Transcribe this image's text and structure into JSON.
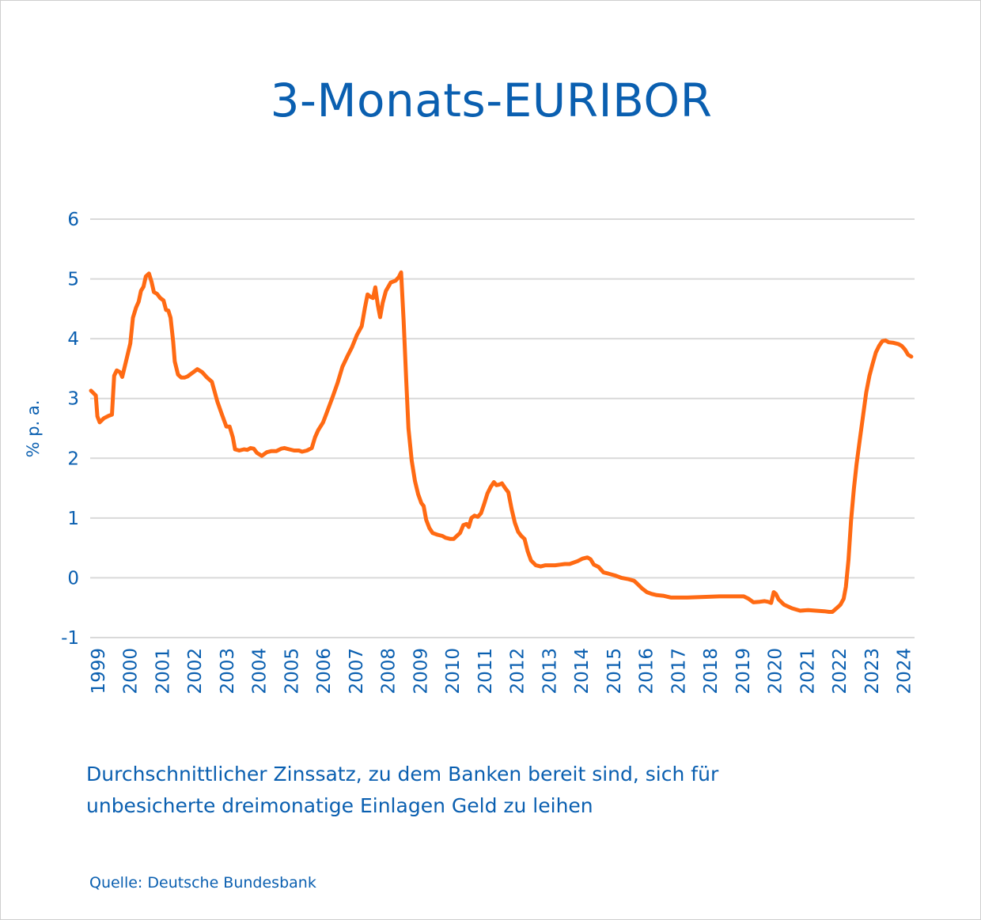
{
  "title": "3-Monats-EURIBOR",
  "subtitle_line1": "Durchschnittlicher Zinssatz, zu dem Banken bereit sind, sich für",
  "subtitle_line2": "unbesicherte dreimonatige Einlagen Geld zu leihen",
  "source": "Quelle: Deutsche Bundesbank",
  "colors": {
    "text": "#0a5fb0",
    "line": "#ff6a13",
    "grid": "#d9d9d9"
  },
  "chart_data": {
    "type": "line",
    "title": "3-Monats-EURIBOR",
    "xlabel": "",
    "ylabel": "% p. a.",
    "ylim": [
      -1,
      6
    ],
    "yticks": [
      "-1",
      "0",
      "1",
      "2",
      "3",
      "4",
      "5",
      "6"
    ],
    "xlim": [
      1999.0,
      2024.55
    ],
    "xticks": [
      "1999",
      "2000",
      "2001",
      "2002",
      "2003",
      "2004",
      "2005",
      "2006",
      "2007",
      "2008",
      "2009",
      "2010",
      "2011",
      "2012",
      "2013",
      "2014",
      "2015",
      "2016",
      "2017",
      "2018",
      "2019",
      "2020",
      "2021",
      "2022",
      "2023",
      "2024"
    ],
    "grid": true,
    "series": [
      {
        "points": [
          [
            1999.0,
            3.13
          ],
          [
            1999.15,
            3.05
          ],
          [
            1999.2,
            2.7
          ],
          [
            1999.27,
            2.6
          ],
          [
            1999.4,
            2.67
          ],
          [
            1999.55,
            2.71
          ],
          [
            1999.65,
            2.73
          ],
          [
            1999.72,
            3.38
          ],
          [
            1999.8,
            3.47
          ],
          [
            1999.9,
            3.44
          ],
          [
            1999.97,
            3.36
          ],
          [
            2000.1,
            3.65
          ],
          [
            2000.22,
            3.92
          ],
          [
            2000.3,
            4.35
          ],
          [
            2000.4,
            4.52
          ],
          [
            2000.48,
            4.62
          ],
          [
            2000.55,
            4.8
          ],
          [
            2000.63,
            4.87
          ],
          [
            2000.7,
            5.04
          ],
          [
            2000.8,
            5.09
          ],
          [
            2000.88,
            4.95
          ],
          [
            2000.95,
            4.78
          ],
          [
            2001.05,
            4.75
          ],
          [
            2001.15,
            4.68
          ],
          [
            2001.25,
            4.64
          ],
          [
            2001.33,
            4.48
          ],
          [
            2001.4,
            4.47
          ],
          [
            2001.47,
            4.35
          ],
          [
            2001.55,
            3.95
          ],
          [
            2001.6,
            3.62
          ],
          [
            2001.7,
            3.4
          ],
          [
            2001.8,
            3.35
          ],
          [
            2001.9,
            3.35
          ],
          [
            2002.0,
            3.37
          ],
          [
            2002.15,
            3.43
          ],
          [
            2002.3,
            3.49
          ],
          [
            2002.45,
            3.44
          ],
          [
            2002.6,
            3.35
          ],
          [
            2002.75,
            3.28
          ],
          [
            2002.92,
            2.95
          ],
          [
            2003.05,
            2.75
          ],
          [
            2003.2,
            2.53
          ],
          [
            2003.3,
            2.53
          ],
          [
            2003.4,
            2.35
          ],
          [
            2003.47,
            2.15
          ],
          [
            2003.6,
            2.13
          ],
          [
            2003.75,
            2.15
          ],
          [
            2003.85,
            2.14
          ],
          [
            2003.95,
            2.17
          ],
          [
            2004.05,
            2.16
          ],
          [
            2004.15,
            2.09
          ],
          [
            2004.3,
            2.04
          ],
          [
            2004.45,
            2.1
          ],
          [
            2004.6,
            2.12
          ],
          [
            2004.75,
            2.12
          ],
          [
            2004.9,
            2.16
          ],
          [
            2005.0,
            2.17
          ],
          [
            2005.15,
            2.15
          ],
          [
            2005.3,
            2.13
          ],
          [
            2005.45,
            2.13
          ],
          [
            2005.55,
            2.11
          ],
          [
            2005.7,
            2.13
          ],
          [
            2005.85,
            2.17
          ],
          [
            2005.95,
            2.35
          ],
          [
            2006.05,
            2.47
          ],
          [
            2006.2,
            2.6
          ],
          [
            2006.3,
            2.74
          ],
          [
            2006.5,
            3.03
          ],
          [
            2006.65,
            3.26
          ],
          [
            2006.8,
            3.53
          ],
          [
            2006.95,
            3.7
          ],
          [
            2007.1,
            3.86
          ],
          [
            2007.25,
            4.06
          ],
          [
            2007.4,
            4.21
          ],
          [
            2007.5,
            4.52
          ],
          [
            2007.58,
            4.74
          ],
          [
            2007.67,
            4.7
          ],
          [
            2007.75,
            4.68
          ],
          [
            2007.82,
            4.86
          ],
          [
            2007.9,
            4.56
          ],
          [
            2007.97,
            4.36
          ],
          [
            2008.05,
            4.6
          ],
          [
            2008.15,
            4.8
          ],
          [
            2008.3,
            4.94
          ],
          [
            2008.45,
            4.97
          ],
          [
            2008.55,
            5.03
          ],
          [
            2008.62,
            5.11
          ],
          [
            2008.7,
            4.3
          ],
          [
            2008.78,
            3.3
          ],
          [
            2008.85,
            2.5
          ],
          [
            2008.95,
            1.96
          ],
          [
            2009.05,
            1.62
          ],
          [
            2009.15,
            1.4
          ],
          [
            2009.25,
            1.25
          ],
          [
            2009.32,
            1.2
          ],
          [
            2009.4,
            0.97
          ],
          [
            2009.5,
            0.83
          ],
          [
            2009.6,
            0.75
          ],
          [
            2009.75,
            0.72
          ],
          [
            2009.9,
            0.7
          ],
          [
            2010.0,
            0.67
          ],
          [
            2010.15,
            0.65
          ],
          [
            2010.25,
            0.65
          ],
          [
            2010.35,
            0.7
          ],
          [
            2010.45,
            0.75
          ],
          [
            2010.55,
            0.88
          ],
          [
            2010.65,
            0.9
          ],
          [
            2010.72,
            0.85
          ],
          [
            2010.8,
            1.0
          ],
          [
            2010.9,
            1.04
          ],
          [
            2011.0,
            1.02
          ],
          [
            2011.1,
            1.08
          ],
          [
            2011.2,
            1.24
          ],
          [
            2011.3,
            1.41
          ],
          [
            2011.4,
            1.52
          ],
          [
            2011.5,
            1.6
          ],
          [
            2011.58,
            1.55
          ],
          [
            2011.67,
            1.56
          ],
          [
            2011.75,
            1.58
          ],
          [
            2011.85,
            1.5
          ],
          [
            2011.95,
            1.43
          ],
          [
            2012.05,
            1.15
          ],
          [
            2012.15,
            0.92
          ],
          [
            2012.25,
            0.77
          ],
          [
            2012.35,
            0.7
          ],
          [
            2012.45,
            0.65
          ],
          [
            2012.55,
            0.44
          ],
          [
            2012.65,
            0.29
          ],
          [
            2012.8,
            0.21
          ],
          [
            2012.95,
            0.19
          ],
          [
            2013.1,
            0.21
          ],
          [
            2013.25,
            0.21
          ],
          [
            2013.4,
            0.21
          ],
          [
            2013.55,
            0.22
          ],
          [
            2013.7,
            0.23
          ],
          [
            2013.85,
            0.23
          ],
          [
            2013.95,
            0.25
          ],
          [
            2014.1,
            0.28
          ],
          [
            2014.25,
            0.32
          ],
          [
            2014.4,
            0.34
          ],
          [
            2014.5,
            0.31
          ],
          [
            2014.6,
            0.22
          ],
          [
            2014.75,
            0.18
          ],
          [
            2014.9,
            0.09
          ],
          [
            2015.05,
            0.07
          ],
          [
            2015.25,
            0.04
          ],
          [
            2015.45,
            0.0
          ],
          [
            2015.65,
            -0.02
          ],
          [
            2015.85,
            -0.05
          ],
          [
            2015.95,
            -0.1
          ],
          [
            2016.1,
            -0.18
          ],
          [
            2016.25,
            -0.24
          ],
          [
            2016.4,
            -0.27
          ],
          [
            2016.55,
            -0.29
          ],
          [
            2016.75,
            -0.3
          ],
          [
            2017.0,
            -0.33
          ],
          [
            2017.5,
            -0.33
          ],
          [
            2018.0,
            -0.32
          ],
          [
            2018.5,
            -0.31
          ],
          [
            2019.0,
            -0.31
          ],
          [
            2019.25,
            -0.31
          ],
          [
            2019.4,
            -0.35
          ],
          [
            2019.55,
            -0.41
          ],
          [
            2019.75,
            -0.4
          ],
          [
            2019.9,
            -0.39
          ],
          [
            2020.0,
            -0.4
          ],
          [
            2020.1,
            -0.42
          ],
          [
            2020.18,
            -0.24
          ],
          [
            2020.25,
            -0.27
          ],
          [
            2020.33,
            -0.36
          ],
          [
            2020.5,
            -0.45
          ],
          [
            2020.75,
            -0.51
          ],
          [
            2021.0,
            -0.55
          ],
          [
            2021.25,
            -0.54
          ],
          [
            2021.5,
            -0.55
          ],
          [
            2021.75,
            -0.56
          ],
          [
            2021.9,
            -0.57
          ],
          [
            2022.0,
            -0.57
          ],
          [
            2022.15,
            -0.5
          ],
          [
            2022.25,
            -0.45
          ],
          [
            2022.35,
            -0.35
          ],
          [
            2022.42,
            -0.15
          ],
          [
            2022.5,
            0.3
          ],
          [
            2022.58,
            0.95
          ],
          [
            2022.67,
            1.5
          ],
          [
            2022.75,
            1.9
          ],
          [
            2022.85,
            2.3
          ],
          [
            2022.95,
            2.7
          ],
          [
            2023.05,
            3.1
          ],
          [
            2023.15,
            3.38
          ],
          [
            2023.25,
            3.58
          ],
          [
            2023.35,
            3.77
          ],
          [
            2023.45,
            3.88
          ],
          [
            2023.55,
            3.96
          ],
          [
            2023.65,
            3.97
          ],
          [
            2023.75,
            3.94
          ],
          [
            2023.9,
            3.93
          ],
          [
            2024.05,
            3.91
          ],
          [
            2024.15,
            3.88
          ],
          [
            2024.25,
            3.82
          ],
          [
            2024.35,
            3.73
          ],
          [
            2024.45,
            3.7
          ]
        ]
      }
    ]
  }
}
